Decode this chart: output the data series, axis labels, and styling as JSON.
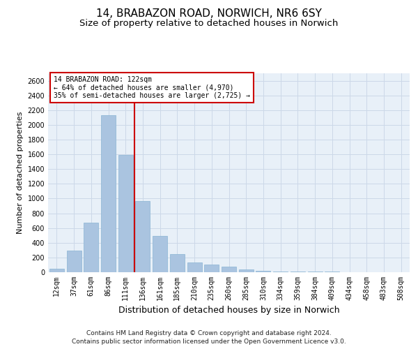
{
  "title_line1": "14, BRABAZON ROAD, NORWICH, NR6 6SY",
  "title_line2": "Size of property relative to detached houses in Norwich",
  "xlabel": "Distribution of detached houses by size in Norwich",
  "ylabel": "Number of detached properties",
  "categories": [
    "12sqm",
    "37sqm",
    "61sqm",
    "86sqm",
    "111sqm",
    "136sqm",
    "161sqm",
    "185sqm",
    "210sqm",
    "235sqm",
    "260sqm",
    "285sqm",
    "310sqm",
    "334sqm",
    "359sqm",
    "384sqm",
    "409sqm",
    "434sqm",
    "458sqm",
    "483sqm",
    "508sqm"
  ],
  "values": [
    50,
    290,
    670,
    2130,
    1590,
    970,
    490,
    245,
    130,
    100,
    75,
    35,
    18,
    12,
    8,
    6,
    5,
    4,
    3,
    3,
    2
  ],
  "bar_color": "#aac4e0",
  "bar_edge_color": "#8ab4d4",
  "vline_x_index": 4,
  "vline_color": "#cc0000",
  "annotation_text": "14 BRABAZON ROAD: 122sqm\n← 64% of detached houses are smaller (4,970)\n35% of semi-detached houses are larger (2,725) →",
  "annotation_box_color": "#cc0000",
  "annotation_box_fill": "#ffffff",
  "ylim": [
    0,
    2700
  ],
  "yticks": [
    0,
    200,
    400,
    600,
    800,
    1000,
    1200,
    1400,
    1600,
    1800,
    2000,
    2200,
    2400,
    2600
  ],
  "grid_color": "#ccd8e8",
  "bg_color": "#e8f0f8",
  "footer_line1": "Contains HM Land Registry data © Crown copyright and database right 2024.",
  "footer_line2": "Contains public sector information licensed under the Open Government Licence v3.0.",
  "title_fontsize": 11,
  "subtitle_fontsize": 9.5,
  "ylabel_fontsize": 8,
  "xlabel_fontsize": 9,
  "tick_fontsize": 7,
  "annotation_fontsize": 7,
  "footer_fontsize": 6.5
}
